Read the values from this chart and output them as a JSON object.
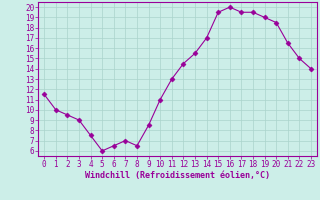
{
  "x": [
    0,
    1,
    2,
    3,
    4,
    5,
    6,
    7,
    8,
    9,
    10,
    11,
    12,
    13,
    14,
    15,
    16,
    17,
    18,
    19,
    20,
    21,
    22,
    23
  ],
  "y": [
    11.5,
    10.0,
    9.5,
    9.0,
    7.5,
    6.0,
    6.5,
    7.0,
    6.5,
    8.5,
    11.0,
    13.0,
    14.5,
    15.5,
    17.0,
    19.5,
    20.0,
    19.5,
    19.5,
    19.0,
    18.5,
    16.5,
    15.0,
    14.0
  ],
  "line_color": "#990099",
  "marker": "D",
  "marker_size": 2.5,
  "bg_color": "#cceee8",
  "grid_color": "#aad4cc",
  "xlabel": "Windchill (Refroidissement éolien,°C)",
  "ylabel_ticks": [
    6,
    7,
    8,
    9,
    10,
    11,
    12,
    13,
    14,
    15,
    16,
    17,
    18,
    19,
    20
  ],
  "xlim": [
    -0.5,
    23.5
  ],
  "ylim": [
    5.5,
    20.5
  ],
  "tick_fontsize": 5.5,
  "xlabel_fontsize": 6.0
}
